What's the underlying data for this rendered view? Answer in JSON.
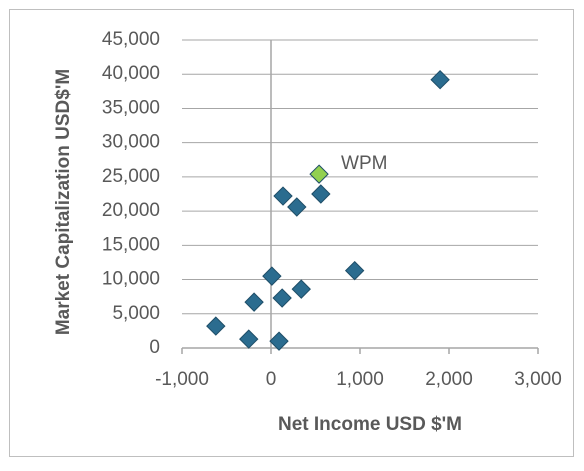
{
  "chart_data": {
    "type": "scatter",
    "xlabel": "Net Income USD $'M",
    "ylabel": "Market Capitalization USD$'M",
    "xlim": [
      -1000,
      3000
    ],
    "xticks": [
      {
        "value": -1000,
        "label": "-1,000"
      },
      0,
      {
        "value": 1000,
        "label": "1,000"
      },
      {
        "value": 2000,
        "label": "2,000"
      },
      {
        "value": 3000,
        "label": "3,000"
      }
    ],
    "ylim": [
      0,
      45000
    ],
    "yticks": [
      0,
      {
        "value": 5000,
        "label": "5,000"
      },
      {
        "value": 10000,
        "label": "10,000"
      },
      {
        "value": 15000,
        "label": "15,000"
      },
      {
        "value": 20000,
        "label": "20,000"
      },
      {
        "value": 25000,
        "label": "25,000"
      },
      {
        "value": 30000,
        "label": "30,000"
      },
      {
        "value": 35000,
        "label": "35,000"
      },
      {
        "value": 40000,
        "label": "40,000"
      },
      {
        "value": 45000,
        "label": "45,000"
      }
    ],
    "grid": true,
    "series": [
      {
        "color": "#2b6c8f",
        "x": [
          1900,
          135,
          560,
          290,
          10,
          940,
          340,
          125,
          -190,
          -620,
          -250,
          90
        ],
        "values": [
          39200,
          22200,
          22500,
          20600,
          10500,
          11300,
          8600,
          7300,
          6700,
          3200,
          1300,
          1000
        ]
      },
      {
        "color": "#92d050",
        "x": [
          540
        ],
        "values": [
          25400
        ],
        "value_labels": [
          "WPM"
        ]
      }
    ]
  }
}
